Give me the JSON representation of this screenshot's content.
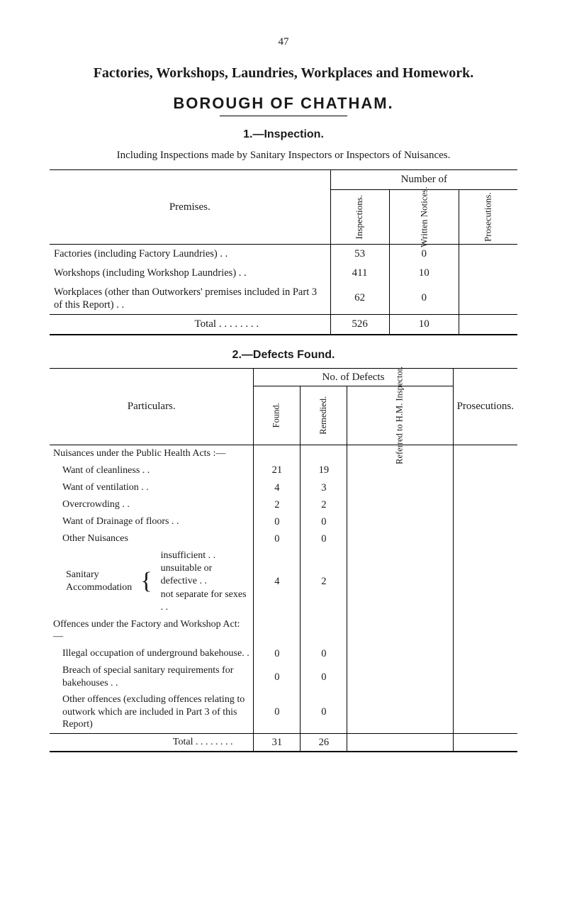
{
  "page_number": "47",
  "main_title": "Factories, Workshops, Laundries, Workplaces and Homework.",
  "borough_title": "BOROUGH OF CHATHAM.",
  "section1": {
    "heading": "1.—Inspection.",
    "lead": "Including Inspections made by Sanitary Inspectors or Inspectors of Nuisances.",
    "number_of": "Number of",
    "premises_label": "Premises.",
    "columns": [
      "Inspections.",
      "Written\nNotices.",
      "Prosecutions."
    ],
    "rows": [
      {
        "label": "Factories (including Factory Laundries)  . .",
        "cells": [
          "53",
          "0",
          ""
        ]
      },
      {
        "label": "Workshops (including Workshop Laundries)  . .",
        "cells": [
          "411",
          "10",
          ""
        ]
      },
      {
        "label": "Workplaces (other than Outworkers' premises included in Part 3 of this Report)  . .",
        "cells": [
          "62",
          "0",
          ""
        ]
      }
    ],
    "total_label": "Total     . .     . .     . .     . .",
    "total_cells": [
      "526",
      "10",
      ""
    ]
  },
  "section2": {
    "heading": "2.—Defects Found.",
    "no_of_defects": "No. of Defects",
    "particulars_label": "Particulars.",
    "columns": [
      "Found.",
      "Remedied.",
      "Referred to\nH.M. Inspector."
    ],
    "outside_col": "Prosecutions.",
    "rows": [
      {
        "label": "Nuisances under the Public Health Acts :—",
        "cells": [
          "",
          "",
          "",
          ""
        ],
        "bold": false
      },
      {
        "label": "Want of cleanliness  . .",
        "indent": 1,
        "cells": [
          "21",
          "19",
          "",
          ""
        ]
      },
      {
        "label": "Want of ventilation  . .",
        "indent": 1,
        "cells": [
          "4",
          "3",
          "",
          ""
        ]
      },
      {
        "label": "Overcrowding  . .",
        "indent": 1,
        "cells": [
          "2",
          "2",
          "",
          ""
        ]
      },
      {
        "label": "Want of Drainage of floors  . .",
        "indent": 1,
        "cells": [
          "0",
          "0",
          "",
          ""
        ]
      },
      {
        "label": "Other Nuisances",
        "indent": 1,
        "cells": [
          "0",
          "0",
          "",
          ""
        ]
      },
      {
        "grp_left": "Sanitary\nAccommodation",
        "grp_right": "insufficient  . .\nunsuitable or defective  . .\nnot separate for sexes  . .",
        "cells": [
          "4",
          "2",
          "",
          ""
        ]
      },
      {
        "label": "Offences under the Factory and Workshop Act:—",
        "cells": [
          "",
          "",
          "",
          ""
        ]
      },
      {
        "label": "Illegal occupation of underground bakehouse. .",
        "indent": 1,
        "cells": [
          "0",
          "0",
          "",
          ""
        ]
      },
      {
        "label": "Breach of special sanitary requirements for bakehouses  . .",
        "indent": 1,
        "cells": [
          "0",
          "0",
          "",
          ""
        ]
      },
      {
        "label": "Other offences (excluding offences relating to outwork which are included in Part 3 of this Report)",
        "indent": 1,
        "cells": [
          "0",
          "0",
          "",
          ""
        ]
      }
    ],
    "total_label": "Total     . .     . .     . .     . .",
    "total_cells": [
      "31",
      "26",
      "",
      ""
    ]
  },
  "colors": {
    "text": "#1a1a1a",
    "rule": "#000000",
    "bg": "#ffffff"
  }
}
